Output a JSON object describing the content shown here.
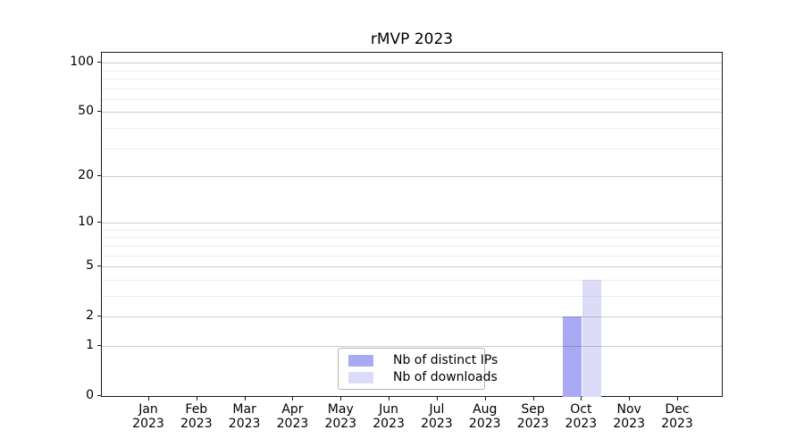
{
  "title": "rMVP 2023",
  "chart_data": {
    "type": "bar",
    "title": "rMVP 2023",
    "categories": [
      "Jan",
      "Feb",
      "Mar",
      "Apr",
      "May",
      "Jun",
      "Jul",
      "Aug",
      "Sep",
      "Oct",
      "Nov",
      "Dec"
    ],
    "category_year": "2023",
    "series": [
      {
        "name": "Nb of distinct IPs",
        "color": "#a9a9f4",
        "values": [
          0,
          0,
          0,
          0,
          0,
          0,
          0,
          0,
          0,
          2,
          0,
          0
        ]
      },
      {
        "name": "Nb of downloads",
        "color": "#dcdcf8",
        "values": [
          0,
          0,
          0,
          0,
          0,
          0,
          0,
          0,
          0,
          4,
          0,
          0
        ]
      }
    ],
    "xlabel": "",
    "ylabel": "",
    "yscale": "log1p",
    "y_major_ticks": [
      0,
      1,
      2,
      5,
      10,
      20,
      50,
      100
    ],
    "y_minor_gridlines": [
      3,
      4,
      6,
      7,
      8,
      9,
      30,
      40,
      60,
      70,
      80,
      90
    ],
    "ylim": [
      0,
      118
    ],
    "grid": "on",
    "legend_position": "lower center"
  },
  "colors": {
    "bar_distinct_ips": "#a9a9f4",
    "bar_downloads": "#dcdcf8",
    "grid_major": "#c7c7c7",
    "grid_minor": "#ececec",
    "spine": "#1a1a1a",
    "background": "#ffffff"
  }
}
